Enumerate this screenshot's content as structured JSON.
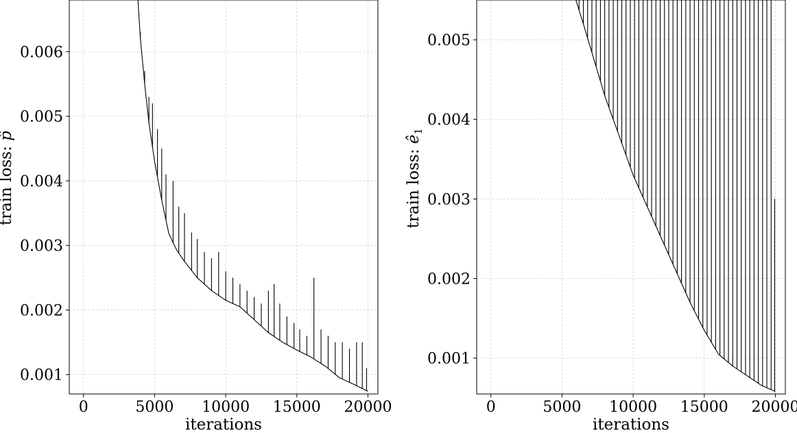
{
  "chart_data": [
    {
      "type": "line",
      "title": "",
      "xlabel": "iterations",
      "ylabel": "train loss: p̂",
      "ylabel_text": "train loss: ",
      "ylabel_symbol": "p̂",
      "xlim": [
        -1000,
        20700
      ],
      "ylim": [
        0.0007,
        0.0068
      ],
      "xticks": [
        0,
        5000,
        10000,
        15000,
        20000
      ],
      "xtick_labels": [
        "0",
        "5000",
        "10000",
        "15000",
        "20000"
      ],
      "yticks": [
        0.001,
        0.002,
        0.003,
        0.004,
        0.005,
        0.006
      ],
      "ytick_labels": [
        "0.001",
        "0.002",
        "0.003",
        "0.004",
        "0.005",
        "0.006"
      ],
      "grid": true,
      "series": [
        {
          "color": "#000000",
          "x": [
            3800,
            4000,
            4300,
            4600,
            5000,
            5500,
            6000,
            6500,
            7000,
            8000,
            9000,
            10000,
            11000,
            12000,
            13000,
            14000,
            15000,
            16000,
            17000,
            18000,
            19000,
            20000
          ],
          "y": [
            0.0069,
            0.0062,
            0.0055,
            0.0049,
            0.0043,
            0.0037,
            0.00318,
            0.00295,
            0.00278,
            0.0025,
            0.0023,
            0.00215,
            0.00205,
            0.00185,
            0.00165,
            0.0015,
            0.00138,
            0.00127,
            0.00113,
            0.00095,
            0.00085,
            0.00074
          ],
          "spikes": [
            {
              "x": 4000,
              "peak": 0.0063
            },
            {
              "x": 4300,
              "peak": 0.0057
            },
            {
              "x": 4600,
              "peak": 0.0053
            },
            {
              "x": 4850,
              "peak": 0.0052
            },
            {
              "x": 5200,
              "peak": 0.0048
            },
            {
              "x": 5500,
              "peak": 0.0045
            },
            {
              "x": 5800,
              "peak": 0.0041
            },
            {
              "x": 6300,
              "peak": 0.004
            },
            {
              "x": 6700,
              "peak": 0.0036
            },
            {
              "x": 7100,
              "peak": 0.0035
            },
            {
              "x": 7600,
              "peak": 0.0032
            },
            {
              "x": 8000,
              "peak": 0.0031
            },
            {
              "x": 8500,
              "peak": 0.0029
            },
            {
              "x": 9000,
              "peak": 0.0028
            },
            {
              "x": 9500,
              "peak": 0.0029
            },
            {
              "x": 10000,
              "peak": 0.0026
            },
            {
              "x": 10500,
              "peak": 0.0025
            },
            {
              "x": 11000,
              "peak": 0.0024
            },
            {
              "x": 11500,
              "peak": 0.0023
            },
            {
              "x": 12000,
              "peak": 0.0022
            },
            {
              "x": 12500,
              "peak": 0.0021
            },
            {
              "x": 13000,
              "peak": 0.0023
            },
            {
              "x": 13400,
              "peak": 0.0024
            },
            {
              "x": 13800,
              "peak": 0.0021
            },
            {
              "x": 14300,
              "peak": 0.0019
            },
            {
              "x": 14800,
              "peak": 0.0018
            },
            {
              "x": 15200,
              "peak": 0.0017
            },
            {
              "x": 15700,
              "peak": 0.0016
            },
            {
              "x": 16200,
              "peak": 0.0025
            },
            {
              "x": 16700,
              "peak": 0.0017
            },
            {
              "x": 17200,
              "peak": 0.0016
            },
            {
              "x": 17700,
              "peak": 0.0015
            },
            {
              "x": 18200,
              "peak": 0.0015
            },
            {
              "x": 18700,
              "peak": 0.0014
            },
            {
              "x": 19200,
              "peak": 0.0015
            },
            {
              "x": 19600,
              "peak": 0.0015
            },
            {
              "x": 19900,
              "peak": 0.0011
            }
          ]
        }
      ]
    },
    {
      "type": "line",
      "title": "",
      "xlabel": "iterations",
      "ylabel": "train loss: ê₁",
      "ylabel_text": "train loss: ",
      "ylabel_symbol": "ê",
      "ylabel_subscript": "1",
      "xlim": [
        -1000,
        20700
      ],
      "ylim": [
        0.00055,
        0.0055
      ],
      "xticks": [
        0,
        5000,
        10000,
        15000,
        20000
      ],
      "xtick_labels": [
        "0",
        "5000",
        "10000",
        "15000",
        "20000"
      ],
      "yticks": [
        0.001,
        0.002,
        0.003,
        0.004,
        0.005
      ],
      "ytick_labels": [
        "0.001",
        "0.002",
        "0.003",
        "0.004",
        "0.005"
      ],
      "grid": true,
      "series": [
        {
          "color": "#000000",
          "x": [
            5800,
            6500,
            7000,
            8000,
            9000,
            10000,
            11000,
            12000,
            13000,
            14000,
            15000,
            16000,
            17000,
            18000,
            19000,
            20000
          ],
          "y": [
            0.0056,
            0.0052,
            0.0049,
            0.0043,
            0.0038,
            0.0033,
            0.0029,
            0.0025,
            0.0021,
            0.0017,
            0.00135,
            0.00105,
            0.0009,
            0.00078,
            0.00066,
            0.00058
          ],
          "spikes": [
            {
              "x": 6000,
              "peak": 0.0056
            },
            {
              "x": 6200,
              "peak": 0.0056
            },
            {
              "x": 6500,
              "peak": 0.0056
            },
            {
              "x": 6800,
              "peak": 0.0056
            },
            {
              "x": 7100,
              "peak": 0.0056
            },
            {
              "x": 7400,
              "peak": 0.0056
            },
            {
              "x": 7700,
              "peak": 0.0056
            },
            {
              "x": 8000,
              "peak": 0.0056
            },
            {
              "x": 8300,
              "peak": 0.0056
            },
            {
              "x": 8600,
              "peak": 0.0056
            },
            {
              "x": 8900,
              "peak": 0.0056
            },
            {
              "x": 9200,
              "peak": 0.0056
            },
            {
              "x": 9500,
              "peak": 0.0056
            },
            {
              "x": 9800,
              "peak": 0.0056
            },
            {
              "x": 10100,
              "peak": 0.0056
            },
            {
              "x": 10400,
              "peak": 0.0056
            },
            {
              "x": 10700,
              "peak": 0.0056
            },
            {
              "x": 11000,
              "peak": 0.0056
            },
            {
              "x": 11300,
              "peak": 0.0056
            },
            {
              "x": 11600,
              "peak": 0.0056
            },
            {
              "x": 11900,
              "peak": 0.0056
            },
            {
              "x": 12200,
              "peak": 0.0056
            },
            {
              "x": 12500,
              "peak": 0.0056
            },
            {
              "x": 12800,
              "peak": 0.0056
            },
            {
              "x": 13100,
              "peak": 0.0056
            },
            {
              "x": 13400,
              "peak": 0.0056
            },
            {
              "x": 13700,
              "peak": 0.0056
            },
            {
              "x": 14000,
              "peak": 0.0056
            },
            {
              "x": 14300,
              "peak": 0.0056
            },
            {
              "x": 14600,
              "peak": 0.0056
            },
            {
              "x": 14900,
              "peak": 0.0056
            },
            {
              "x": 15200,
              "peak": 0.0056
            },
            {
              "x": 15500,
              "peak": 0.0056
            },
            {
              "x": 15800,
              "peak": 0.0056
            },
            {
              "x": 16100,
              "peak": 0.0056
            },
            {
              "x": 16400,
              "peak": 0.0056
            },
            {
              "x": 16700,
              "peak": 0.0056
            },
            {
              "x": 17000,
              "peak": 0.0056
            },
            {
              "x": 17300,
              "peak": 0.0056
            },
            {
              "x": 17600,
              "peak": 0.0056
            },
            {
              "x": 17900,
              "peak": 0.0056
            },
            {
              "x": 18200,
              "peak": 0.0056
            },
            {
              "x": 18500,
              "peak": 0.0056
            },
            {
              "x": 18800,
              "peak": 0.0056
            },
            {
              "x": 19100,
              "peak": 0.0056
            },
            {
              "x": 19400,
              "peak": 0.0056
            },
            {
              "x": 19700,
              "peak": 0.0056
            },
            {
              "x": 19950,
              "peak": 0.003
            }
          ]
        }
      ]
    }
  ]
}
